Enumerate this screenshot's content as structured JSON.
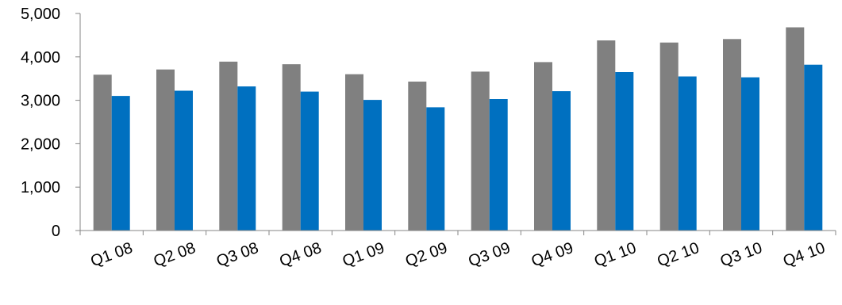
{
  "chart_data": {
    "type": "bar",
    "title": "",
    "xlabel": "",
    "ylabel": "",
    "categories": [
      "Q1 08",
      "Q2 08",
      "Q3 08",
      "Q4 08",
      "Q1 09",
      "Q2 09",
      "Q3 09",
      "Q4 09",
      "Q1 10",
      "Q2 10",
      "Q3 10",
      "Q4 10"
    ],
    "series": [
      {
        "color": "#808080",
        "values": [
          3590,
          3710,
          3890,
          3830,
          3600,
          3430,
          3660,
          3880,
          4380,
          4330,
          4410,
          4680
        ]
      },
      {
        "color": "#0070C0",
        "values": [
          3100,
          3220,
          3320,
          3200,
          3010,
          2840,
          3030,
          3210,
          3650,
          3550,
          3530,
          3820
        ]
      }
    ],
    "ylim": [
      0,
      5000
    ],
    "yticks": [
      0,
      1000,
      2000,
      3000,
      4000,
      5000
    ],
    "ytick_labels": [
      "0",
      "1,000",
      "2,000",
      "3,000",
      "4,000",
      "5,000"
    ],
    "grid": false,
    "legend": "none"
  }
}
